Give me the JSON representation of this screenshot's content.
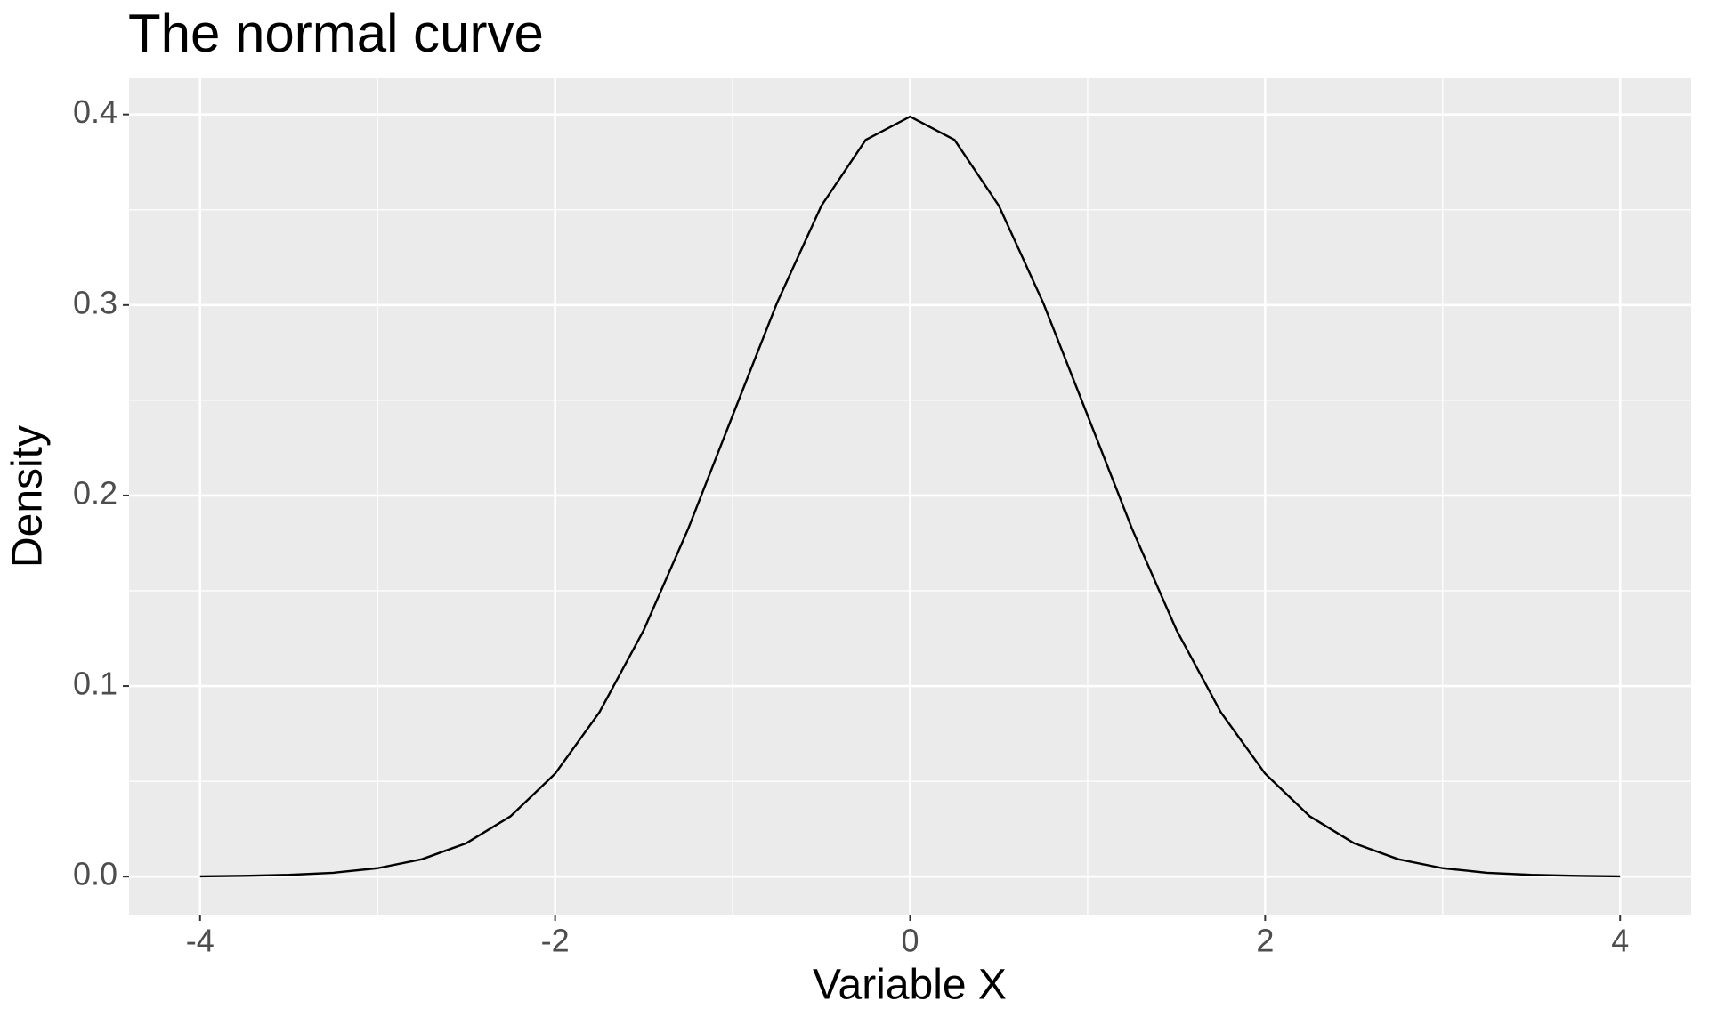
{
  "chart_data": {
    "type": "line",
    "title": "The normal curve",
    "x_label": "Variable X",
    "y_label": "Density",
    "x": [
      -4,
      -3.75,
      -3.5,
      -3.25,
      -3,
      -2.75,
      -2.5,
      -2.25,
      -2,
      -1.75,
      -1.5,
      -1.25,
      -1,
      -0.75,
      -0.5,
      -0.25,
      0,
      0.25,
      0.5,
      0.75,
      1,
      1.25,
      1.5,
      1.75,
      2,
      2.25,
      2.5,
      2.75,
      3,
      3.25,
      3.5,
      3.75,
      4
    ],
    "series": [
      {
        "color": "#000000",
        "values": [
          0.0001,
          0.0004,
          0.0009,
          0.002,
          0.0044,
          0.0091,
          0.0175,
          0.0317,
          0.054,
          0.0863,
          0.1295,
          0.1826,
          0.242,
          0.3011,
          0.3521,
          0.3867,
          0.3989,
          0.3867,
          0.3521,
          0.3011,
          0.242,
          0.1826,
          0.1295,
          0.0863,
          0.054,
          0.0317,
          0.0175,
          0.0091,
          0.0044,
          0.002,
          0.0009,
          0.0004,
          0.0001
        ]
      }
    ],
    "xlim": [
      -4.4,
      4.4
    ],
    "xticks": [
      -4,
      -2,
      0,
      2,
      4
    ],
    "xminor": [
      -3,
      -1,
      1,
      3
    ],
    "ylim": [
      -0.02,
      0.419
    ],
    "yticks": [
      {
        "value": 0,
        "label": "0.0"
      },
      0.1,
      0.2,
      0.3,
      0.4
    ],
    "yminor": [
      0.05,
      0.15,
      0.25,
      0.35
    ],
    "grid": true
  }
}
